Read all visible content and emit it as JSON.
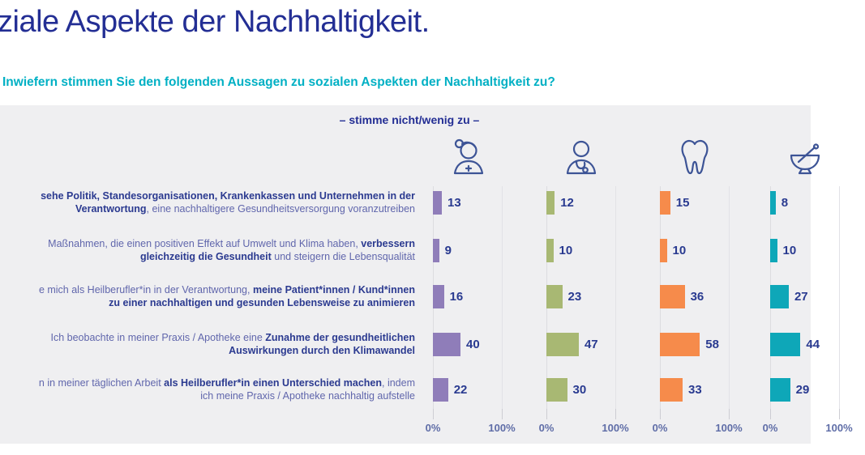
{
  "title": "ziale Aspekte der Nachhaltigkeit.",
  "question": "Inwiefern stimmen Sie den folgenden Aussagen zu sozialen Aspekten der Nachhaltigkeit zu?",
  "panel": {
    "legend": "– stimme nicht/wenig zu –",
    "axis_labels": {
      "zero": "0%",
      "hundred": "100%"
    }
  },
  "colors": {
    "title": "#232e94",
    "question": "#00b0c4",
    "panel_bg": "#efeff1",
    "value_label": "#293a90",
    "axis_label": "#5f6da7",
    "icon_stroke": "#3d5496",
    "series": [
      "#8f7db9",
      "#a8b873",
      "#f68b4b",
      "#0ea7b8"
    ]
  },
  "columns": [
    {
      "icon": "doctor-head-mirror-icon",
      "color": "#8f7db9"
    },
    {
      "icon": "doctor-stethoscope-icon",
      "color": "#a8b873"
    },
    {
      "icon": "tooth-icon",
      "color": "#f68b4b"
    },
    {
      "icon": "mortar-pestle-icon",
      "color": "#0ea7b8"
    }
  ],
  "rows": [
    {
      "line1": [
        {
          "t": "sehe Politik, Standesorganisationen, Krankenkassen und Unternehmen in der",
          "b": true
        }
      ],
      "line2": [
        {
          "t": "Verantwortung",
          "b": true
        },
        {
          "t": ", eine nachhaltigere Gesundheitsversorgung voranzutreiben",
          "b": false
        }
      ]
    },
    {
      "line1": [
        {
          "t": "Maßnahmen, die einen positiven Effekt auf Umwelt und Klima haben, ",
          "b": false
        },
        {
          "t": "verbessern",
          "b": true
        }
      ],
      "line2": [
        {
          "t": "gleichzeitig die Gesundheit",
          "b": true
        },
        {
          "t": " und steigern die Lebensqualität",
          "b": false
        }
      ]
    },
    {
      "line1": [
        {
          "t": "e mich als Heilberufler*in in der Verantwortung, ",
          "b": false
        },
        {
          "t": "meine Patient*innen / Kund*innen",
          "b": true
        }
      ],
      "line2": [
        {
          "t": "zu einer nachhaltigen und gesunden Lebensweise zu animieren",
          "b": true
        }
      ]
    },
    {
      "line1": [
        {
          "t": "Ich beobachte in meiner Praxis / Apotheke eine ",
          "b": false
        },
        {
          "t": "Zunahme der gesundheitlichen",
          "b": true
        }
      ],
      "line2": [
        {
          "t": "Auswirkungen durch den Klimawandel",
          "b": true
        }
      ]
    },
    {
      "line1": [
        {
          "t": "n in meiner täglichen Arbeit ",
          "b": false
        },
        {
          "t": "als Heilberufler*in einen Unterschied machen",
          "b": true
        },
        {
          "t": ", indem",
          "b": false
        }
      ],
      "line2": [
        {
          "t": "ich meine Praxis / Apotheke nachhaltig aufstelle",
          "b": false
        }
      ]
    }
  ],
  "chart_data": {
    "type": "bar",
    "orientation": "horizontal",
    "title": "ziale Aspekte der Nachhaltigkeit.",
    "subtitle": "Inwiefern stimmen Sie den folgenden Aussagen zu sozialen Aspekten der Nachhaltigkeit zu?",
    "legend": "– stimme nicht/wenig zu –",
    "axis_range": [
      0,
      100
    ],
    "axis_tick_labels": [
      "0%",
      "100%"
    ],
    "categories": [
      "sehe Politik, Standesorganisationen, Krankenkassen und Unternehmen in der Verantwortung, eine nachhaltigere Gesundheitsversorgung voranzutreiben",
      "Maßnahmen, die einen positiven Effekt auf Umwelt und Klima haben, verbessern gleichzeitig die Gesundheit und steigern die Lebensqualität",
      "e mich als Heilberufler*in in der Verantwortung, meine Patient*innen / Kund*innen zu einer nachhaltigen und gesunden Lebensweise zu animieren",
      "Ich beobachte in meiner Praxis / Apotheke eine Zunahme der gesundheitlichen Auswirkungen durch den Klimawandel",
      "n in meiner täglichen Arbeit als Heilberufler*in einen Unterschied machen, indem ich meine Praxis / Apotheke nachhaltig aufstelle"
    ],
    "series": [
      {
        "name": "doctor-head-mirror",
        "values": [
          13,
          9,
          16,
          40,
          22
        ]
      },
      {
        "name": "doctor-stethoscope",
        "values": [
          12,
          10,
          23,
          47,
          30
        ]
      },
      {
        "name": "dentist-tooth",
        "values": [
          15,
          10,
          36,
          58,
          33
        ]
      },
      {
        "name": "pharmacist-mortar",
        "values": [
          8,
          10,
          27,
          44,
          29
        ]
      }
    ]
  }
}
